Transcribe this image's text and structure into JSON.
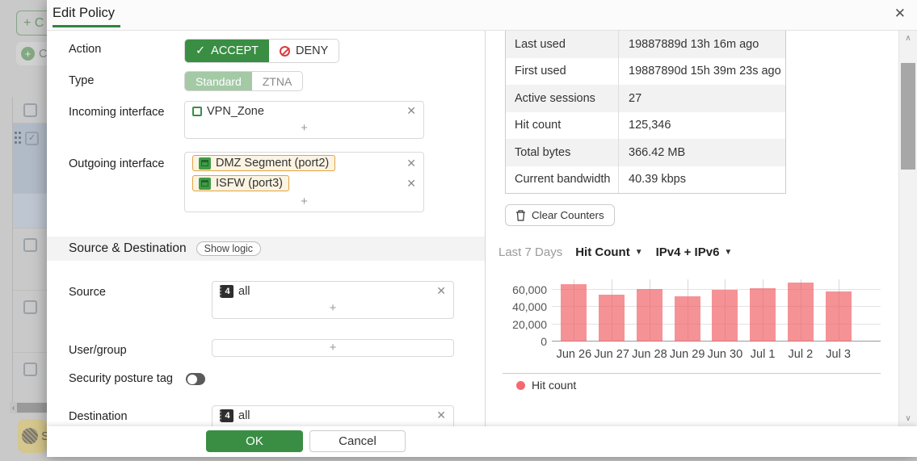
{
  "icons": {
    "close": "✕",
    "plus": "+",
    "check": "✓",
    "caret_down": "▼",
    "caret_up": "∧",
    "caret_down_scroll": "∨",
    "arrow_left": "‹",
    "row_check": "✓"
  },
  "background": {
    "create_button": "+ C",
    "clone_button": "C",
    "fabric_badge": "S"
  },
  "dialog": {
    "title": "Edit Policy"
  },
  "form": {
    "action": {
      "label": "Action",
      "accept": "ACCEPT",
      "deny": "DENY"
    },
    "type": {
      "label": "Type",
      "standard": "Standard",
      "ztna": "ZTNA"
    },
    "incoming": {
      "label": "Incoming interface",
      "items": [
        {
          "name": "VPN_Zone",
          "icon": "zone"
        }
      ]
    },
    "outgoing": {
      "label": "Outgoing interface",
      "items": [
        {
          "name": "DMZ Segment (port2)",
          "icon": "port"
        },
        {
          "name": "ISFW (port3)",
          "icon": "port"
        }
      ]
    },
    "section": {
      "title": "Source & Destination",
      "show_logic": "Show logic"
    },
    "source": {
      "label": "Source",
      "items": [
        {
          "name": "all",
          "icon": "ipv4"
        }
      ]
    },
    "user_group": {
      "label": "User/group"
    },
    "security_posture": {
      "label": "Security posture tag"
    },
    "destination": {
      "label": "Destination",
      "items": [
        {
          "name": "all",
          "icon": "ipv4"
        }
      ]
    }
  },
  "stats": {
    "rows": [
      {
        "label": "Last used",
        "value": "19887889d 13h 16m ago"
      },
      {
        "label": "First used",
        "value": "19887890d 15h 39m 23s ago"
      },
      {
        "label": "Active sessions",
        "value": "27"
      },
      {
        "label": "Hit count",
        "value": "125,346"
      },
      {
        "label": "Total bytes",
        "value": "366.42 MB"
      },
      {
        "label": "Current bandwidth",
        "value": "40.39 kbps"
      }
    ],
    "clear_counters": "Clear Counters"
  },
  "chart_header": {
    "range": "Last 7 Days",
    "metric": "Hit Count",
    "family": "IPv4 + IPv6"
  },
  "chart_data": {
    "type": "bar",
    "title": "Last 7 Days Hit Count",
    "categories": [
      "Jun 26",
      "Jun 27",
      "Jun 28",
      "Jun 29",
      "Jun 30",
      "Jul 1",
      "Jul 2",
      "Jul 3"
    ],
    "values": [
      66000,
      54500,
      61000,
      52500,
      59500,
      62000,
      68000,
      58000
    ],
    "ylabel": "",
    "xlabel": "",
    "ylim": [
      0,
      70000
    ],
    "yticks": [
      0,
      20000,
      40000,
      60000
    ],
    "ytick_labels": [
      "0",
      "20,000",
      "40,000",
      "60,000"
    ],
    "grid": true,
    "legend_position": "bottom",
    "legend": [
      {
        "label": "Hit count",
        "color": "#f4696f"
      }
    ],
    "bar_color": "rgba(240,95,100,0.68)"
  },
  "footer": {
    "ok": "OK",
    "cancel": "Cancel"
  },
  "colors": {
    "accent_green": "#3a8e44",
    "deny_red": "#dd3a3e",
    "chip_orange": "#e2a23f",
    "bar_pink": "#f79a9c"
  }
}
